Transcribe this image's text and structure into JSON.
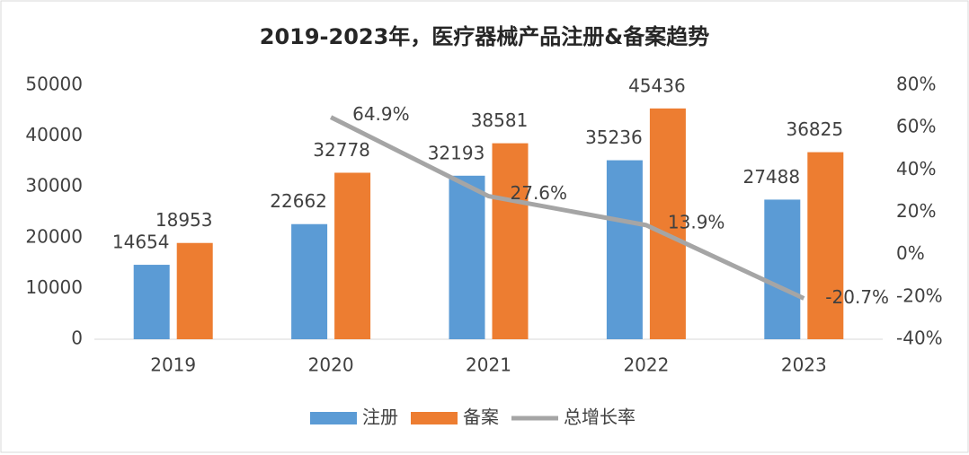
{
  "chart_data": {
    "type": "bar-line",
    "title": "2019-2023年，医疗器械产品注册&备案趋势",
    "categories": [
      "2019",
      "2020",
      "2021",
      "2022",
      "2023"
    ],
    "series": [
      {
        "name": "注册",
        "color": "#5b9bd5",
        "type": "bar",
        "values": [
          14654,
          22662,
          32193,
          35236,
          27488
        ]
      },
      {
        "name": "备案",
        "color": "#ed7d31",
        "type": "bar",
        "values": [
          18953,
          32778,
          38581,
          45436,
          36825
        ]
      },
      {
        "name": "总增长率",
        "color": "#a5a5a5",
        "type": "line",
        "axis": "y2",
        "values": [
          null,
          64.9,
          27.6,
          13.9,
          -20.7
        ],
        "value_labels": [
          null,
          "64.9%",
          "27.6%",
          "13.9%",
          "-20.7%"
        ]
      }
    ],
    "ylim": [
      0,
      50000
    ],
    "yticks": [
      0,
      10000,
      20000,
      30000,
      40000,
      50000
    ],
    "y2lim": [
      -40,
      80
    ],
    "y2ticks": [
      {
        "value": -40,
        "label": "-40%"
      },
      {
        "value": -20,
        "label": "-20%"
      },
      {
        "value": 0,
        "label": "0%"
      },
      {
        "value": 20,
        "label": "20%"
      },
      {
        "value": 40,
        "label": "40%"
      },
      {
        "value": 60,
        "label": "60%"
      },
      {
        "value": 80,
        "label": "80%"
      }
    ],
    "legend": "bottom"
  }
}
